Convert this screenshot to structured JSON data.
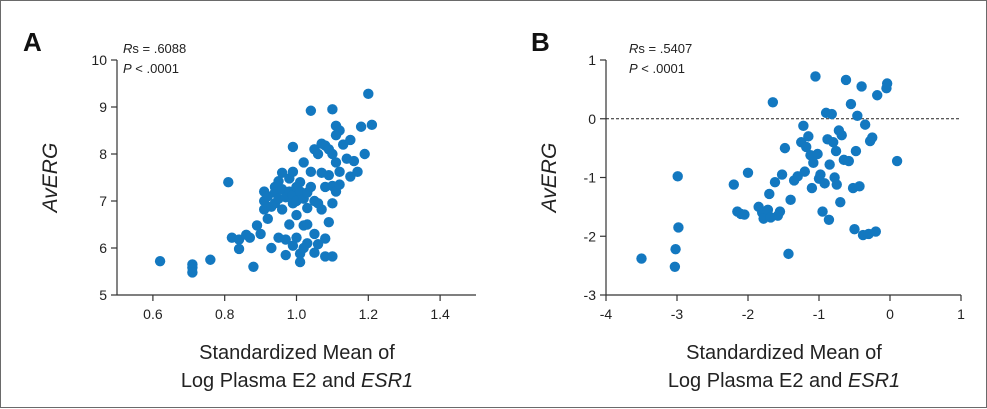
{
  "chart_data": [
    {
      "panel": "A",
      "type": "scatter",
      "title": "",
      "ylabel": "AvERG",
      "xlabel_line1": "Standardized Mean of",
      "xlabel_line2_prefix": "Log Plasma E2 and ",
      "xlabel_line2_italic": "ESR1",
      "stat_rs_italic": "R",
      "stat_rs_rest": "s = .6088",
      "stat_p_italic": "P",
      "stat_p_rest": " < .0001",
      "xlim": [
        0.5,
        1.5
      ],
      "ylim": [
        5,
        10
      ],
      "xticks": [
        0.6,
        0.8,
        1.0,
        1.2,
        1.4
      ],
      "xtick_labels": [
        "0.6",
        "0.8",
        "1.0",
        "1.2",
        "1.4"
      ],
      "yticks": [
        5,
        6,
        7,
        8,
        9,
        10
      ],
      "ytick_labels": [
        "5",
        "6",
        "7",
        "8",
        "9",
        "10"
      ],
      "marker_color": "#1378c0",
      "points": [
        [
          0.62,
          5.72
        ],
        [
          0.71,
          5.65
        ],
        [
          0.71,
          5.58
        ],
        [
          0.71,
          5.48
        ],
        [
          0.76,
          5.75
        ],
        [
          0.81,
          7.4
        ],
        [
          0.82,
          6.22
        ],
        [
          0.84,
          6.18
        ],
        [
          0.84,
          5.98
        ],
        [
          0.86,
          6.28
        ],
        [
          0.87,
          6.22
        ],
        [
          0.88,
          5.6
        ],
        [
          0.89,
          6.48
        ],
        [
          0.9,
          6.3
        ],
        [
          0.91,
          7.2
        ],
        [
          0.91,
          7.0
        ],
        [
          0.91,
          6.82
        ],
        [
          0.92,
          7.1
        ],
        [
          0.92,
          6.62
        ],
        [
          0.93,
          6.88
        ],
        [
          0.93,
          6.0
        ],
        [
          0.94,
          7.3
        ],
        [
          0.94,
          7.18
        ],
        [
          0.94,
          6.95
        ],
        [
          0.95,
          7.42
        ],
        [
          0.95,
          7.05
        ],
        [
          0.95,
          6.22
        ],
        [
          0.96,
          7.6
        ],
        [
          0.96,
          7.25
        ],
        [
          0.96,
          6.82
        ],
        [
          0.97,
          7.08
        ],
        [
          0.97,
          6.18
        ],
        [
          0.97,
          5.85
        ],
        [
          0.98,
          7.48
        ],
        [
          0.98,
          7.2
        ],
        [
          0.98,
          6.5
        ],
        [
          0.99,
          8.15
        ],
        [
          0.99,
          7.62
        ],
        [
          0.99,
          7.12
        ],
        [
          0.99,
          6.95
        ],
        [
          0.99,
          6.05
        ],
        [
          1.0,
          7.3
        ],
        [
          1.0,
          7.0
        ],
        [
          1.0,
          6.7
        ],
        [
          1.0,
          6.22
        ],
        [
          1.01,
          7.4
        ],
        [
          1.01,
          7.2
        ],
        [
          1.01,
          5.88
        ],
        [
          1.01,
          5.7
        ],
        [
          1.02,
          7.82
        ],
        [
          1.02,
          7.05
        ],
        [
          1.02,
          6.48
        ],
        [
          1.02,
          6.0
        ],
        [
          1.03,
          7.18
        ],
        [
          1.03,
          6.85
        ],
        [
          1.03,
          6.5
        ],
        [
          1.03,
          6.1
        ],
        [
          1.04,
          8.92
        ],
        [
          1.04,
          7.62
        ],
        [
          1.04,
          7.3
        ],
        [
          1.05,
          8.1
        ],
        [
          1.05,
          7.0
        ],
        [
          1.05,
          6.3
        ],
        [
          1.05,
          5.9
        ],
        [
          1.06,
          8.0
        ],
        [
          1.06,
          6.95
        ],
        [
          1.06,
          6.08
        ],
        [
          1.07,
          8.22
        ],
        [
          1.07,
          7.6
        ],
        [
          1.07,
          6.82
        ],
        [
          1.08,
          8.18
        ],
        [
          1.08,
          7.3
        ],
        [
          1.08,
          6.2
        ],
        [
          1.08,
          5.82
        ],
        [
          1.09,
          8.1
        ],
        [
          1.09,
          7.55
        ],
        [
          1.09,
          6.55
        ],
        [
          1.1,
          8.95
        ],
        [
          1.1,
          8.0
        ],
        [
          1.1,
          7.32
        ],
        [
          1.1,
          6.95
        ],
        [
          1.1,
          5.82
        ],
        [
          1.11,
          8.6
        ],
        [
          1.11,
          8.4
        ],
        [
          1.11,
          7.82
        ],
        [
          1.11,
          7.2
        ],
        [
          1.12,
          8.5
        ],
        [
          1.12,
          7.62
        ],
        [
          1.12,
          7.35
        ],
        [
          1.13,
          8.2
        ],
        [
          1.14,
          7.9
        ],
        [
          1.15,
          8.3
        ],
        [
          1.15,
          7.52
        ],
        [
          1.16,
          7.85
        ],
        [
          1.17,
          7.62
        ],
        [
          1.18,
          8.58
        ],
        [
          1.19,
          8.0
        ],
        [
          1.2,
          9.28
        ],
        [
          1.21,
          8.62
        ]
      ]
    },
    {
      "panel": "B",
      "type": "scatter",
      "title": "",
      "ylabel": "AvERG",
      "xlabel_line1": "Standardized Mean of",
      "xlabel_line2_prefix": "Log Plasma E2 and ",
      "xlabel_line2_italic": "ESR1",
      "stat_rs_italic": "R",
      "stat_rs_rest": "s = .5407",
      "stat_p_italic": "P",
      "stat_p_rest": " < .0001",
      "xlim": [
        -4,
        1
      ],
      "ylim": [
        -3,
        1
      ],
      "xticks": [
        -4,
        -3,
        -2,
        -1,
        0,
        1
      ],
      "xtick_labels": [
        "-4",
        "-3",
        "-2",
        "-1",
        "0",
        "1"
      ],
      "yticks": [
        -3,
        -2,
        -1,
        0,
        1
      ],
      "ytick_labels": [
        "-3",
        "-2",
        "-1",
        "0",
        "1"
      ],
      "reference_line_y": 0,
      "marker_color": "#1378c0",
      "points": [
        [
          -3.5,
          -2.38
        ],
        [
          -3.03,
          -2.52
        ],
        [
          -3.02,
          -2.22
        ],
        [
          -2.98,
          -1.85
        ],
        [
          -2.99,
          -0.98
        ],
        [
          -2.2,
          -1.12
        ],
        [
          -2.15,
          -1.58
        ],
        [
          -2.1,
          -1.62
        ],
        [
          -2.05,
          -1.63
        ],
        [
          -2.0,
          -0.92
        ],
        [
          -1.85,
          -1.5
        ],
        [
          -1.8,
          -1.6
        ],
        [
          -1.78,
          -1.7
        ],
        [
          -1.72,
          -1.55
        ],
        [
          -1.7,
          -1.28
        ],
        [
          -1.68,
          -1.68
        ],
        [
          -1.65,
          0.28
        ],
        [
          -1.62,
          -1.08
        ],
        [
          -1.58,
          -1.65
        ],
        [
          -1.55,
          -1.58
        ],
        [
          -1.52,
          -0.95
        ],
        [
          -1.48,
          -0.5
        ],
        [
          -1.43,
          -2.3
        ],
        [
          -1.4,
          -1.38
        ],
        [
          -1.35,
          -1.05
        ],
        [
          -1.3,
          -0.98
        ],
        [
          -1.25,
          -0.4
        ],
        [
          -1.22,
          -0.12
        ],
        [
          -1.2,
          -0.9
        ],
        [
          -1.18,
          -0.48
        ],
        [
          -1.15,
          -0.3
        ],
        [
          -1.12,
          -0.62
        ],
        [
          -1.1,
          -1.18
        ],
        [
          -1.08,
          -0.75
        ],
        [
          -1.05,
          0.72
        ],
        [
          -1.02,
          -0.6
        ],
        [
          -1.0,
          -1.02
        ],
        [
          -0.98,
          -0.95
        ],
        [
          -0.95,
          -1.58
        ],
        [
          -0.92,
          -1.1
        ],
        [
          -0.9,
          0.1
        ],
        [
          -0.88,
          -0.35
        ],
        [
          -0.86,
          -1.72
        ],
        [
          -0.85,
          -0.78
        ],
        [
          -0.82,
          0.08
        ],
        [
          -0.8,
          -0.4
        ],
        [
          -0.78,
          -1.0
        ],
        [
          -0.76,
          -0.55
        ],
        [
          -0.75,
          -1.12
        ],
        [
          -0.72,
          -0.2
        ],
        [
          -0.7,
          -1.42
        ],
        [
          -0.68,
          -0.28
        ],
        [
          -0.65,
          -0.7
        ],
        [
          -0.62,
          0.66
        ],
        [
          -0.58,
          -0.72
        ],
        [
          -0.55,
          0.25
        ],
        [
          -0.52,
          -1.18
        ],
        [
          -0.5,
          -1.88
        ],
        [
          -0.48,
          -0.55
        ],
        [
          -0.46,
          0.05
        ],
        [
          -0.43,
          -1.15
        ],
        [
          -0.4,
          0.55
        ],
        [
          -0.38,
          -1.98
        ],
        [
          -0.35,
          -0.1
        ],
        [
          -0.3,
          -1.96
        ],
        [
          -0.28,
          -0.38
        ],
        [
          -0.25,
          -0.32
        ],
        [
          -0.2,
          -1.92
        ],
        [
          -0.18,
          0.4
        ],
        [
          -0.05,
          0.52
        ],
        [
          -0.04,
          0.6
        ],
        [
          0.1,
          -0.72
        ]
      ]
    }
  ]
}
